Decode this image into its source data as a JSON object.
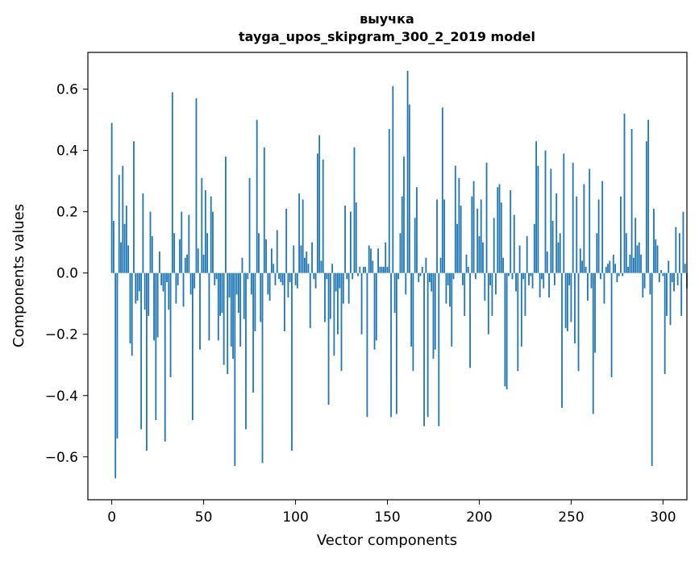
{
  "chart_data": {
    "type": "bar",
    "title": "выучка",
    "subtitle": "tayga_upos_skipgram_300_2_2019 model",
    "xlabel": "Vector components",
    "ylabel": "Components values",
    "xlim": [
      -13,
      313
    ],
    "ylim": [
      -0.74,
      0.72
    ],
    "xticks": [
      0,
      50,
      100,
      150,
      200,
      250,
      300
    ],
    "xtick_labels": [
      "0",
      "50",
      "100",
      "150",
      "200",
      "250",
      "300"
    ],
    "yticks": [
      -0.6,
      -0.4,
      -0.2,
      0.0,
      0.2,
      0.4,
      0.6
    ],
    "ytick_labels": [
      "−0.6",
      "−0.4",
      "−0.2",
      "0.0",
      "0.2",
      "0.4",
      "0.6"
    ],
    "grid": false,
    "legend": "none",
    "bar_color": "#1f77b4",
    "values": [
      0.49,
      0.17,
      -0.67,
      -0.54,
      0.32,
      0.1,
      0.35,
      0.16,
      0.22,
      0.09,
      -0.23,
      -0.27,
      0.43,
      -0.1,
      -0.09,
      -0.06,
      -0.51,
      0.26,
      -0.12,
      -0.58,
      -0.14,
      0.2,
      0.12,
      -0.22,
      -0.48,
      -0.21,
      0.07,
      -0.04,
      -0.06,
      -0.55,
      -0.03,
      -0.12,
      -0.34,
      0.59,
      0.13,
      -0.1,
      -0.04,
      0.11,
      0.2,
      -0.11,
      0.05,
      0.06,
      0.19,
      -0.07,
      -0.48,
      -0.05,
      0.57,
      0.08,
      -0.25,
      0.31,
      0.06,
      0.27,
      0.13,
      -0.22,
      0.25,
      0.2,
      -0.04,
      -0.02,
      -0.22,
      -0.14,
      -0.13,
      -0.3,
      0.38,
      -0.33,
      -0.08,
      -0.24,
      -0.28,
      -0.63,
      -0.07,
      -0.13,
      -0.24,
      0.05,
      -0.15,
      -0.51,
      -0.02,
      0.31,
      -0.07,
      -0.39,
      -0.19,
      0.5,
      0.13,
      -0.16,
      -0.62,
      0.41,
      0.11,
      -0.07,
      -0.09,
      0.08,
      0.03,
      -0.04,
      0.14,
      -0.02,
      -0.03,
      -0.04,
      -0.19,
      0.21,
      -0.08,
      -0.03,
      -0.58,
      0.09,
      -0.04,
      -0.05,
      0.26,
      0.09,
      0.24,
      0.05,
      0.07,
      0.03,
      -0.18,
      0.1,
      -0.02,
      -0.05,
      0.39,
      0.45,
      0.04,
      0.37,
      -0.16,
      -0.02,
      -0.43,
      -0.15,
      0.03,
      -0.27,
      -0.06,
      -0.2,
      -0.05,
      -0.32,
      -0.1,
      0.22,
      -0.02,
      -0.1,
      0.2,
      -0.02,
      0.41,
      0.23,
      -0.01,
      0.02,
      -0.2,
      0.02,
      0.02,
      -0.47,
      0.09,
      0.08,
      0.04,
      -0.25,
      -0.22,
      0.08,
      0.02,
      0.02,
      0.02,
      0.1,
      0.02,
      0.47,
      -0.47,
      0.61,
      -0.13,
      -0.46,
      -0.02,
      0.13,
      0.25,
      0.38,
      -0.07,
      0.66,
      0.55,
      -0.24,
      -0.32,
      0.18,
      0.28,
      -0.03,
      -0.01,
      0.02,
      -0.5,
      0.05,
      -0.47,
      -0.03,
      -0.06,
      -0.28,
      -0.25,
      0.24,
      -0.5,
      0.05,
      0.54,
      0.24,
      -0.1,
      -0.04,
      -0.11,
      -0.24,
      -0.02,
      0.35,
      0.16,
      0.31,
      0.22,
      -0.04,
      -0.14,
      0.06,
      0.02,
      -0.31,
      0.25,
      0.3,
      -0.02,
      0.21,
      0.12,
      0.24,
      0.1,
      -0.09,
      0.36,
      -0.2,
      -0.04,
      -0.14,
      0.18,
      -0.07,
      0.28,
      0.29,
      0.23,
      0.05,
      -0.37,
      -0.38,
      -0.01,
      0.27,
      -0.02,
      0.19,
      -0.06,
      -0.32,
      0.09,
      -0.24,
      -0.02,
      -0.14,
      0.12,
      -0.04,
      -0.01,
      -0.05,
      0.16,
      0.43,
      0.35,
      -0.08,
      -0.02,
      -0.05,
      0.4,
      0.07,
      -0.08,
      0.34,
      0.17,
      -0.04,
      0.26,
      0.1,
      0.13,
      -0.44,
      0.39,
      -0.18,
      -0.19,
      -0.04,
      -0.16,
      0.36,
      -0.23,
      0.25,
      -0.32,
      0.08,
      0.04,
      0.29,
      0.02,
      -0.09,
      0.34,
      -0.05,
      -0.46,
      -0.26,
      0.13,
      0.24,
      -0.02,
      0.3,
      -0.1,
      0.02,
      0.03,
      0.04,
      -0.34,
      0.06,
      0.03,
      -0.03,
      -0.01,
      0.25,
      -0.01,
      0.52,
      0.13,
      0.02,
      0.06,
      0.47,
      0.05,
      0.18,
      0.09,
      0.1,
      0.06,
      -0.08,
      -0.05,
      0.43,
      0.5,
      -0.07,
      -0.63,
      0.21,
      0.11,
      0.09,
      -0.03,
      0.01,
      -0.01,
      -0.33,
      -0.14,
      0.04,
      -0.17,
      -0.03,
      -0.06,
      0.15,
      -0.04,
      0.13,
      -0.14,
      0.2,
      0.03,
      -0.05
    ]
  }
}
